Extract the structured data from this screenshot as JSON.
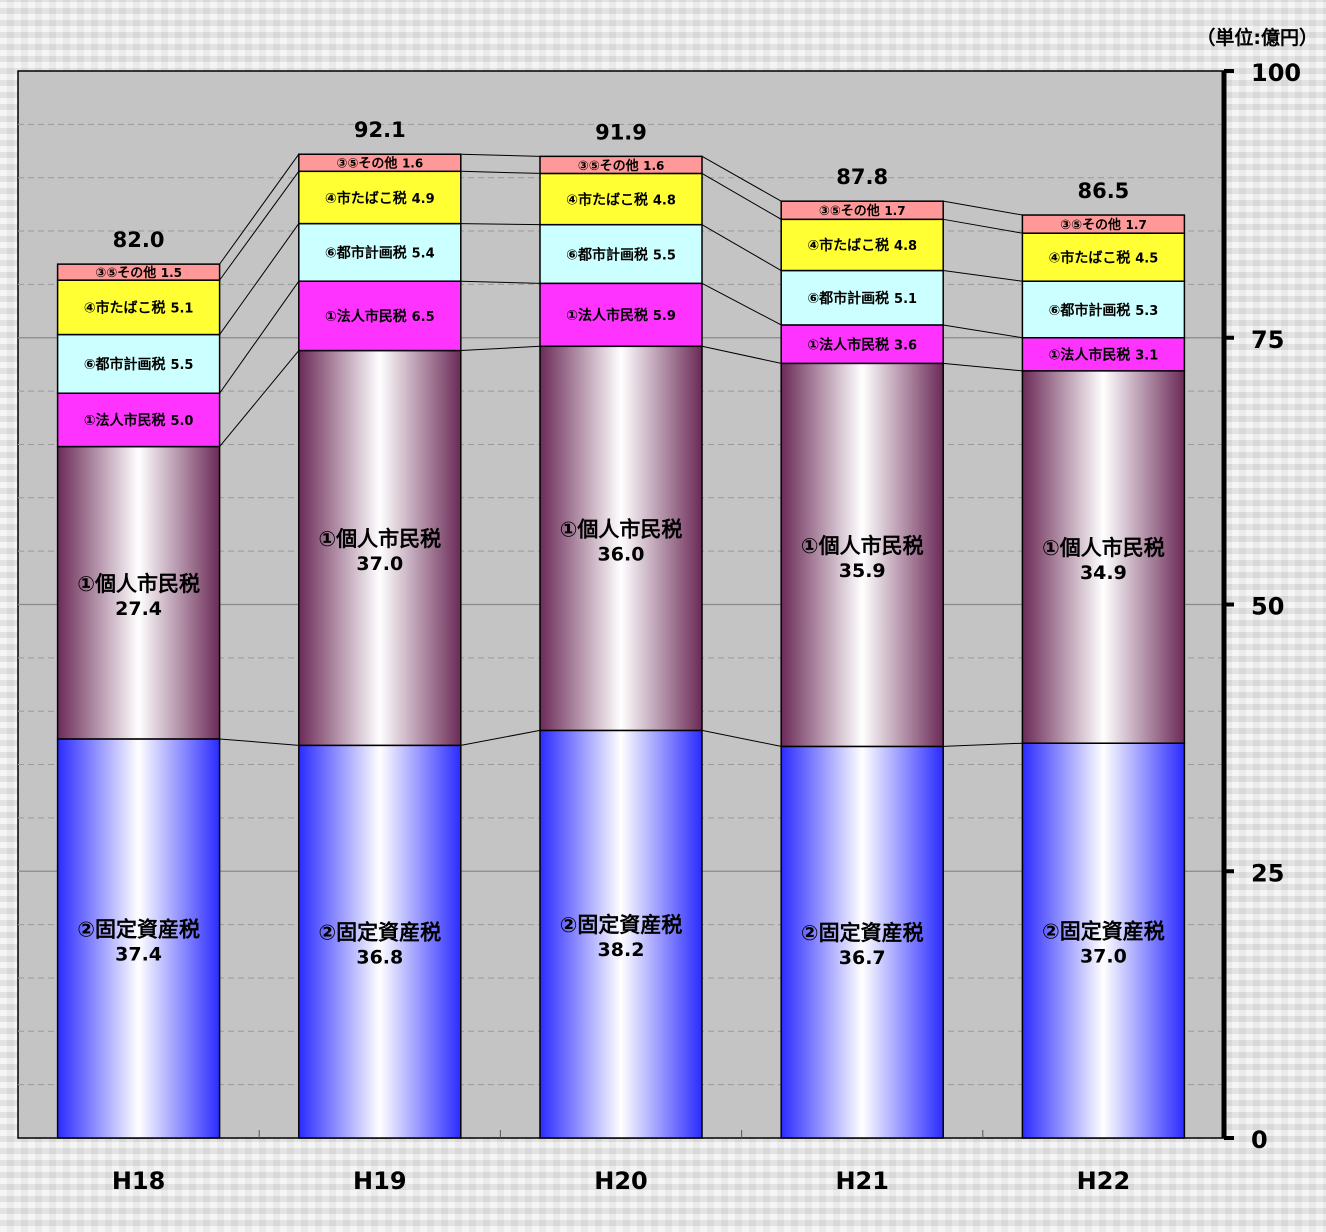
{
  "chart_data": {
    "type": "bar",
    "stacked": true,
    "unit_label": "（単位:億円）",
    "categories": [
      "H18",
      "H19",
      "H20",
      "H21",
      "H22"
    ],
    "totals": [
      82.0,
      92.1,
      91.9,
      87.8,
      86.5
    ],
    "ylim": [
      0,
      100
    ],
    "yticks": [
      0,
      25,
      50,
      75,
      100
    ],
    "grid": true,
    "y_axis_side": "right",
    "series": [
      {
        "name": "②固定資産税",
        "values": [
          37.4,
          36.8,
          38.2,
          36.7,
          37.0
        ],
        "color": "#2b2bff",
        "style": "large"
      },
      {
        "name": "①個人市民税",
        "values": [
          27.4,
          37.0,
          36.0,
          35.9,
          34.9
        ],
        "color": "#6b2a57",
        "style": "large"
      },
      {
        "name": "①法人市民税",
        "values": [
          5.0,
          6.5,
          5.9,
          3.6,
          3.1
        ],
        "color": "#ff33ff",
        "style": "small"
      },
      {
        "name": "⑥都市計画税",
        "values": [
          5.5,
          5.4,
          5.5,
          5.1,
          5.3
        ],
        "color": "#ccffff",
        "style": "small"
      },
      {
        "name": "④市たばこ税",
        "values": [
          5.1,
          4.9,
          4.8,
          4.8,
          4.5
        ],
        "color": "#ffff33",
        "style": "small"
      },
      {
        "name": "③⑤その他",
        "values": [
          1.5,
          1.6,
          1.6,
          1.7,
          1.7
        ],
        "color": "#ff9999",
        "style": "tiny"
      }
    ]
  }
}
